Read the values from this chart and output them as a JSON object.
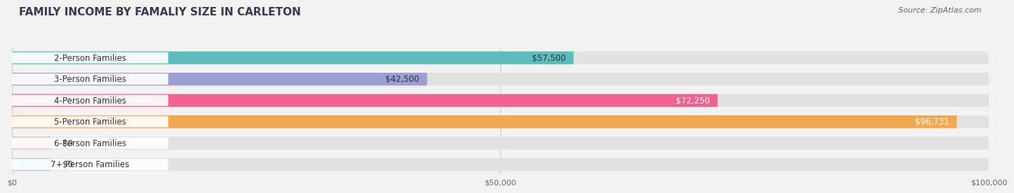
{
  "title": "FAMILY INCOME BY FAMALIY SIZE IN CARLETON",
  "source": "Source: ZipAtlas.com",
  "categories": [
    "2-Person Families",
    "3-Person Families",
    "4-Person Families",
    "5-Person Families",
    "6-Person Families",
    "7+ Person Families"
  ],
  "values": [
    57500,
    42500,
    72250,
    96731,
    0,
    0
  ],
  "bar_colors": [
    "#5bbcbe",
    "#9b9fd4",
    "#f06292",
    "#f5a94e",
    "#f4a0a0",
    "#a0c4f4"
  ],
  "label_colors": [
    "#333333",
    "#333333",
    "#ffffff",
    "#ffffff",
    "#333333",
    "#333333"
  ],
  "value_labels": [
    "$57,500",
    "$42,500",
    "$72,250",
    "$96,731",
    "$0",
    "$0"
  ],
  "value_inside": [
    true,
    true,
    true,
    true,
    false,
    false
  ],
  "xlim": [
    0,
    100000
  ],
  "xticks": [
    0,
    50000,
    100000
  ],
  "xtick_labels": [
    "$0",
    "$50,000",
    "$100,000"
  ],
  "background_color": "#f2f2f2",
  "bar_background_color": "#e2e2e2",
  "title_fontsize": 11,
  "source_fontsize": 8,
  "label_fontsize": 8.5,
  "value_fontsize": 8.5
}
